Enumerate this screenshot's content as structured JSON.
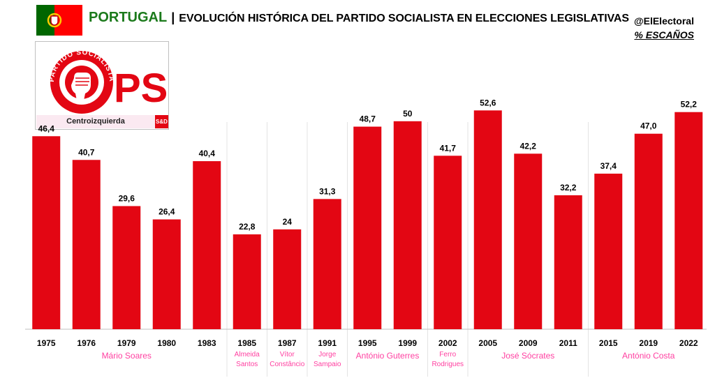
{
  "header": {
    "country": "PORTUGAL",
    "separator": "|",
    "title": "EVOLUCIÓN HISTÓRICA DEL PARTIDO SOCIALISTA EN ELECCIONES LEGISLATIVAS",
    "source": "@ElElectoral",
    "metric": "% ESCAÑOS"
  },
  "logo": {
    "ring_text": "PARTIDO SOCIALISTA",
    "acronym": "PS",
    "ideology": "Centroizquierda",
    "group": "S&D",
    "color": "#e30613"
  },
  "colors": {
    "bar": "#e30613",
    "leader_label": "#ff3fa0",
    "title_green": "#1b7a1b"
  },
  "chart_data": {
    "type": "bar",
    "categories": [
      "1975",
      "1976",
      "1979",
      "1980",
      "1983",
      "1985",
      "1987",
      "1991",
      "1995",
      "1999",
      "2002",
      "2005",
      "2009",
      "2011",
      "2015",
      "2019",
      "2022"
    ],
    "values": [
      46.4,
      40.7,
      29.6,
      26.4,
      40.4,
      22.8,
      24,
      31.3,
      48.7,
      50,
      41.7,
      52.6,
      42.2,
      32.2,
      37.4,
      47.0,
      52.2
    ],
    "value_labels": [
      "46,4",
      "40,7",
      "29,6",
      "26,4",
      "40,4",
      "22,8",
      "24",
      "31,3",
      "48,7",
      "50",
      "41,7",
      "52,6",
      "42,2",
      "32,2",
      "37,4",
      "47,0",
      "52,2"
    ],
    "ylim": [
      0,
      55
    ],
    "grid": false,
    "leaders": [
      {
        "lines": [
          "Mário Soares"
        ],
        "start": 0,
        "end": 4
      },
      {
        "lines": [
          "Almeida",
          "Santos"
        ],
        "start": 5,
        "end": 5
      },
      {
        "lines": [
          "Vítor",
          "Constâncio"
        ],
        "start": 6,
        "end": 6
      },
      {
        "lines": [
          "Jorge",
          "Sampaio"
        ],
        "start": 7,
        "end": 7
      },
      {
        "lines": [
          "António Guterres"
        ],
        "start": 8,
        "end": 9
      },
      {
        "lines": [
          "Ferro",
          "Rodrigues"
        ],
        "start": 10,
        "end": 10
      },
      {
        "lines": [
          "José Sócrates"
        ],
        "start": 11,
        "end": 13
      },
      {
        "lines": [
          "António Costa"
        ],
        "start": 14,
        "end": 16
      }
    ]
  }
}
